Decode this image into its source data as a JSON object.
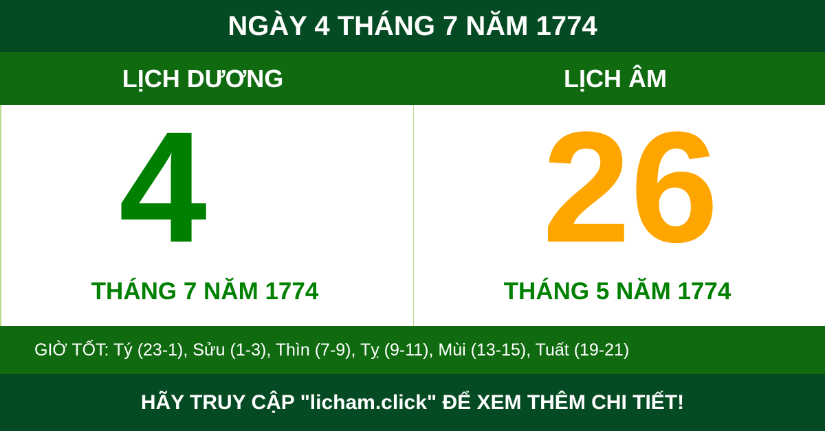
{
  "title": "NGÀY 4 THÁNG 7 NĂM 1774",
  "solar": {
    "heading": "LỊCH DƯƠNG",
    "day": "4",
    "month_year": "THÁNG 7 NĂM 1774"
  },
  "lunar": {
    "heading": "LỊCH ÂM",
    "day": "26",
    "month_year": "THÁNG 5 NĂM 1774"
  },
  "good_hours": "GIỜ TỐT: Tý (23-1), Sửu (1-3), Thìn (7-9), Tỵ (9-11), Mùi (13-15), Tuất (19-21)",
  "footer": "HÃY TRUY CẬP \"licham.click\" ĐỂ XEM THÊM CHI TIẾT!",
  "colors": {
    "dark_green": "#044a22",
    "green": "#106b10",
    "solar_digit": "#008000",
    "lunar_digit": "#ffa500"
  }
}
